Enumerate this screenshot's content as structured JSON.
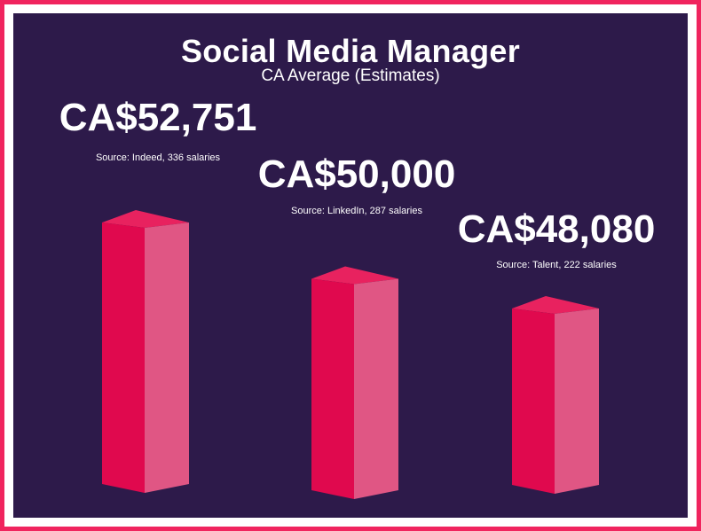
{
  "header": {
    "title": "Social Media Manager",
    "subtitle": "CA Average (Estimates)"
  },
  "colors": {
    "background": "#2d1a4a",
    "frame": "#f0245e",
    "bar_front": "#e0094e",
    "bar_side": "#e05684",
    "bar_top": "#e8225f",
    "text": "#ffffff"
  },
  "chart_data": {
    "type": "bar",
    "title": "Social Media Manager",
    "subtitle": "CA Average (Estimates)",
    "categories": [
      "Indeed",
      "LinkedIn",
      "Talent"
    ],
    "values": [
      52751,
      50000,
      48080
    ],
    "value_labels": [
      "CA$52,751",
      "CA$50,000",
      "CA$48,080"
    ],
    "source_labels": [
      "Source: Indeed, 336 salaries",
      "Source: LinkedIn, 287 salaries",
      "Source: Talent, 222 salaries"
    ],
    "unit": "CA$",
    "grid": false,
    "legend": "none"
  }
}
